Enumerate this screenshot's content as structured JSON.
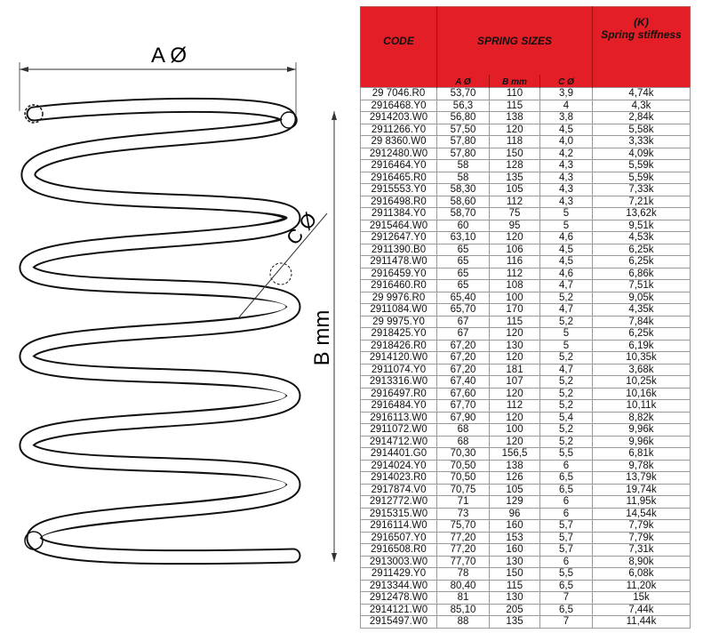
{
  "diagram": {
    "label_a": "A Ø",
    "label_b": "B mm",
    "label_c": "C Ø"
  },
  "table": {
    "header": {
      "code": "CODE",
      "sizes": "SPRING SIZES",
      "k_symbol": "(K)",
      "k_label": "Spring stiffness",
      "a": "A Ø",
      "b": "B mm",
      "c": "C Ø"
    },
    "header_color": "#e41e26",
    "rows": [
      [
        "29 7046.R0",
        "53,70",
        "110",
        "3,9",
        "4,74k"
      ],
      [
        "2916468.Y0",
        "56,3",
        "115",
        "4",
        "4,3k"
      ],
      [
        "2914203.W0",
        "56,80",
        "138",
        "3,8",
        "2,84k"
      ],
      [
        "2911266.Y0",
        "57,50",
        "120",
        "4,5",
        "5,58k"
      ],
      [
        "29 8360.W0",
        "57,80",
        "118",
        "4,0",
        "3,33k"
      ],
      [
        "2912480.W0",
        "57,80",
        "150",
        "4,2",
        "4,09k"
      ],
      [
        "2916464.Y0",
        "58",
        "128",
        "4,3",
        "5,59k"
      ],
      [
        "2916465.R0",
        "58",
        "135",
        "4,3",
        "5,59k"
      ],
      [
        "2915553.Y0",
        "58,30",
        "105",
        "4,3",
        "7,33k"
      ],
      [
        "2916498.R0",
        "58,60",
        "112",
        "4,3",
        "7,21k"
      ],
      [
        "2911384.Y0",
        "58,70",
        "75",
        "5",
        "13,62k"
      ],
      [
        "2915464.W0",
        "60",
        "95",
        "5",
        "9,51k"
      ],
      [
        "2912647.Y0",
        "63,10",
        "120",
        "4,6",
        "4,53k"
      ],
      [
        "2911390.B0",
        "65",
        "106",
        "4,5",
        "6,25k"
      ],
      [
        "2911478.W0",
        "65",
        "116",
        "4,5",
        "6,25k"
      ],
      [
        "2916459.Y0",
        "65",
        "112",
        "4,6",
        "6,86k"
      ],
      [
        "2916460.R0",
        "65",
        "108",
        "4,7",
        "7,51k"
      ],
      [
        "29 9976.R0",
        "65,40",
        "100",
        "5,2",
        "9,05k"
      ],
      [
        "2911084.W0",
        "65,70",
        "170",
        "4,7",
        "4,35k"
      ],
      [
        "29 9975.Y0",
        "67",
        "115",
        "5,2",
        "7,84k"
      ],
      [
        "2918425.Y0",
        "67",
        "120",
        "5",
        "6,25k"
      ],
      [
        "2918426.R0",
        "67,20",
        "130",
        "5",
        "6,19k"
      ],
      [
        "2914120.W0",
        "67,20",
        "120",
        "5,2",
        "10,35k"
      ],
      [
        "2911074.Y0",
        "67,20",
        "181",
        "4,7",
        "3,68k"
      ],
      [
        "2913316.W0",
        "67,40",
        "107",
        "5,2",
        "10,25k"
      ],
      [
        "2916497.R0",
        "67,60",
        "120",
        "5,2",
        "10,16k"
      ],
      [
        "2916484.Y0",
        "67,70",
        "112",
        "5,2",
        "10,11k"
      ],
      [
        "2916113.W0",
        "67,90",
        "120",
        "5,4",
        "8,82k"
      ],
      [
        "2911072.W0",
        "68",
        "100",
        "5,2",
        "9,96k"
      ],
      [
        "2914712.W0",
        "68",
        "120",
        "5,2",
        "9,96k"
      ],
      [
        "2914401.G0",
        "70,30",
        "156,5",
        "5,5",
        "6,81k"
      ],
      [
        "2914024.Y0",
        "70,50",
        "138",
        "6",
        "9,78k"
      ],
      [
        "2914023.R0",
        "70,50",
        "126",
        "6,5",
        "13,79k"
      ],
      [
        "2917874.V0",
        "70,75",
        "105",
        "6,5",
        "19,74k"
      ],
      [
        "2912772.W0",
        "71",
        "129",
        "6",
        "11,95k"
      ],
      [
        "2915315.W0",
        "73",
        "96",
        "6",
        "14,54k"
      ],
      [
        "2916114.W0",
        "75,70",
        "160",
        "5,7",
        "7,79k"
      ],
      [
        "2916507.Y0",
        "77,20",
        "153",
        "5,7",
        "7,79k"
      ],
      [
        "2916508.R0",
        "77,20",
        "160",
        "5,7",
        "7,31k"
      ],
      [
        "2913003.W0",
        "77,70",
        "130",
        "6",
        "8,90k"
      ],
      [
        "2911429.Y0",
        "78",
        "150",
        "5,5",
        "6,08k"
      ],
      [
        "2913344.W0",
        "80,40",
        "115",
        "6,5",
        "11,20k"
      ],
      [
        "2912478.W0",
        "81",
        "130",
        "7",
        "15k"
      ],
      [
        "2914121.W0",
        "85,10",
        "205",
        "6,5",
        "7,44k"
      ],
      [
        "2915497.W0",
        "88",
        "135",
        "7",
        "11,44k"
      ]
    ]
  }
}
